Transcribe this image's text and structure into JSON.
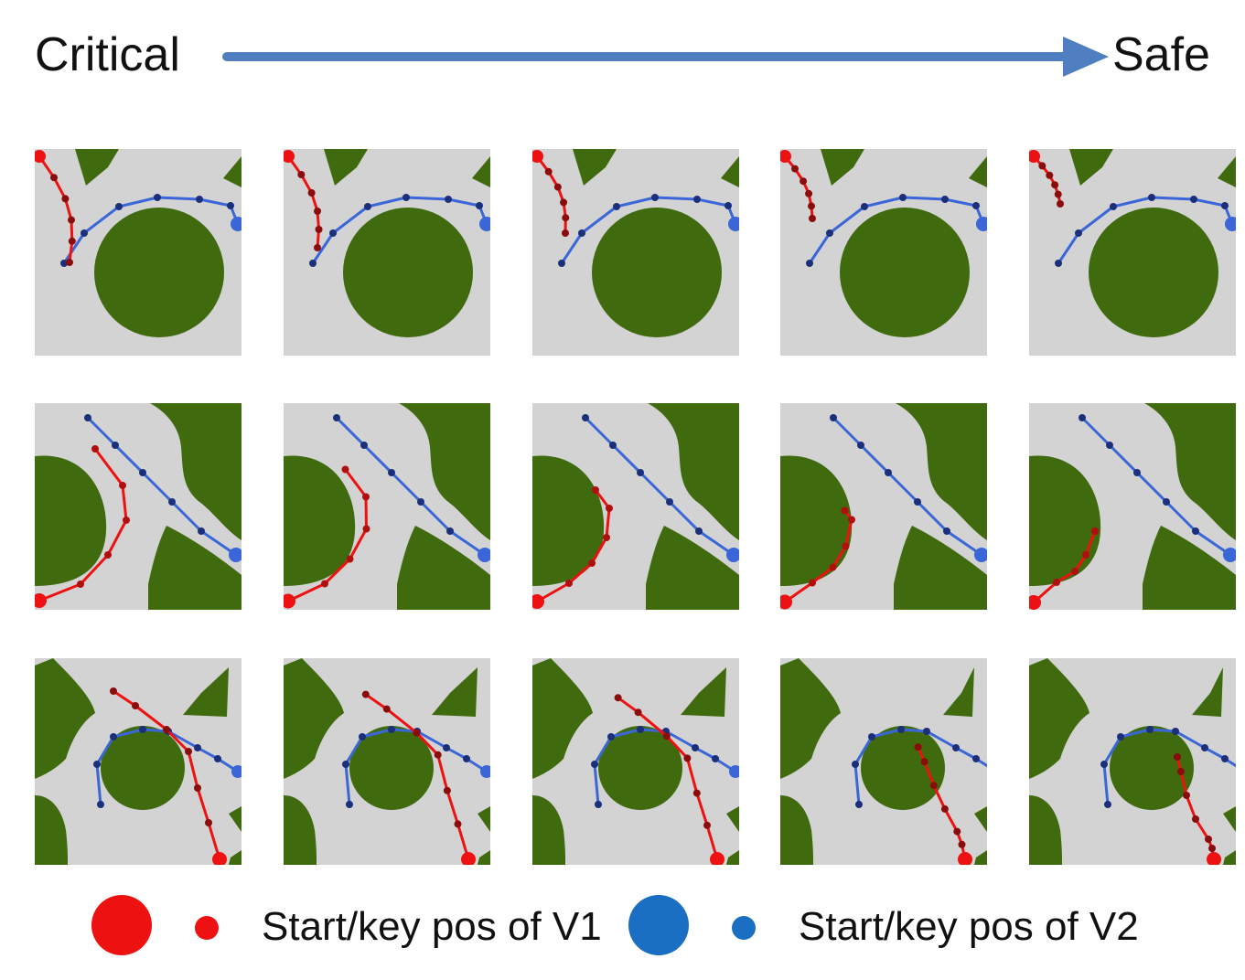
{
  "header": {
    "left_label": "Critical",
    "right_label": "Safe",
    "arrow_color": "#4f7fc0"
  },
  "colors": {
    "road": "#d3d3d3",
    "grass": "#3f6a0d",
    "v1": "#ee1111",
    "v2": "#3a66d8",
    "v2_legend": "#1a6fc2"
  },
  "legend": {
    "v1_label": "Start/key pos of V1",
    "v2_label": "Start/key pos of V2"
  },
  "grid": {
    "rows": 3,
    "columns": 5,
    "scenes": [
      "roundabout-top",
      "curved-merge",
      "roundabout-center"
    ]
  }
}
